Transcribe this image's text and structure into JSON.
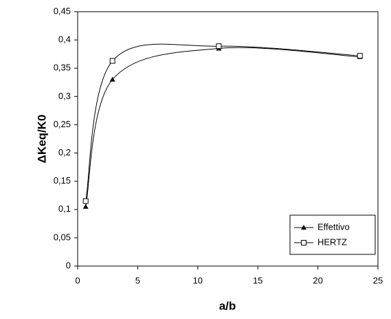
{
  "chart_data": {
    "type": "scatter",
    "lines": "smooth",
    "x_label": "a/b",
    "y_label": "ΔKeq/K0",
    "xlim": [
      0,
      25
    ],
    "xticks": [
      0,
      5,
      10,
      15,
      20,
      25
    ],
    "ylim": [
      0,
      0.45
    ],
    "yticks": [
      0,
      {
        "value": 0.05,
        "label": "0,05"
      },
      {
        "value": 0.1,
        "label": "0,1"
      },
      {
        "value": 0.15,
        "label": "0,15"
      },
      {
        "value": 0.2,
        "label": "0,2"
      },
      {
        "value": 0.25,
        "label": "0,25"
      },
      {
        "value": 0.3,
        "label": "0,3"
      },
      {
        "value": 0.35,
        "label": "0,35"
      },
      {
        "value": 0.4,
        "label": "0,4"
      },
      {
        "value": 0.45,
        "label": "0,45"
      }
    ],
    "legend": "lower right",
    "series": [
      {
        "name": "Effettivo",
        "color": "#000000",
        "marker": "triangle",
        "x": [
          0.67,
          2.9,
          11.75,
          23.5
        ],
        "values": [
          0.105,
          0.33,
          0.385,
          0.37
        ]
      },
      {
        "name": "HERTZ",
        "color": "#000000",
        "marker": "square",
        "x": [
          0.67,
          2.9,
          11.75,
          23.5
        ],
        "values": [
          0.115,
          0.363,
          0.389,
          0.372
        ]
      }
    ]
  }
}
